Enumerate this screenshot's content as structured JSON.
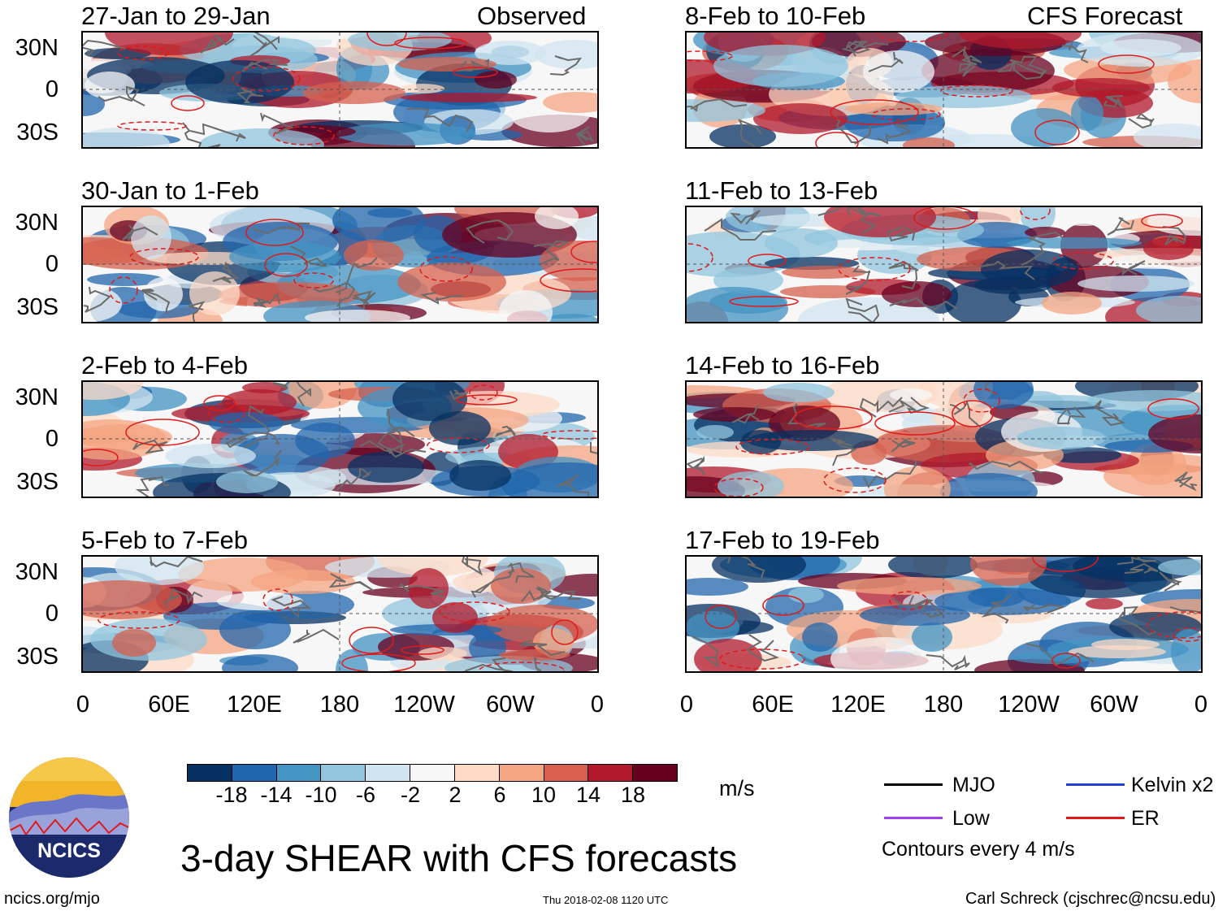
{
  "header": {
    "left_tag": "Observed",
    "right_tag": "CFS Forecast"
  },
  "panels": {
    "left": [
      {
        "title": "27-Jan to 29-Jan"
      },
      {
        "title": "30-Jan to 1-Feb"
      },
      {
        "title": "2-Feb to 4-Feb"
      },
      {
        "title": "5-Feb to 7-Feb"
      }
    ],
    "right": [
      {
        "title": "8-Feb to 10-Feb"
      },
      {
        "title": "11-Feb to 13-Feb"
      },
      {
        "title": "14-Feb to 16-Feb"
      },
      {
        "title": "17-Feb to 19-Feb"
      }
    ]
  },
  "axes": {
    "lat_labels": [
      "30N",
      "0",
      "30S"
    ],
    "lon_labels": [
      "0",
      "60E",
      "120E",
      "180",
      "120W",
      "60W",
      "0"
    ]
  },
  "colorbar": {
    "unit": "m/s",
    "tick_labels": [
      "-18",
      "-14",
      "-10",
      "-6",
      "-2",
      "2",
      "6",
      "10",
      "14",
      "18"
    ],
    "colors": [
      "#053061",
      "#2166ac",
      "#4393c3",
      "#92c5de",
      "#d1e5f0",
      "#f7f7f7",
      "#fddbc7",
      "#f4a582",
      "#d6604d",
      "#b2182b",
      "#67001f"
    ]
  },
  "legend": {
    "items": [
      {
        "label": "MJO",
        "color": "#000000"
      },
      {
        "label": "Kelvin x2",
        "color": "#1f3fd6"
      },
      {
        "label": "Low",
        "color": "#a040f0"
      },
      {
        "label": "ER",
        "color": "#e01a1a"
      }
    ],
    "note": "Contours every 4 m/s"
  },
  "logo": {
    "text": "NCICS"
  },
  "footer": {
    "title": "3-day SHEAR with CFS forecasts",
    "url": "ncics.org/mjo",
    "timestamp": "Thu 2018-02-08 1120 UTC",
    "credit": "Carl Schreck (cjschrec@ncsu.edu)"
  }
}
